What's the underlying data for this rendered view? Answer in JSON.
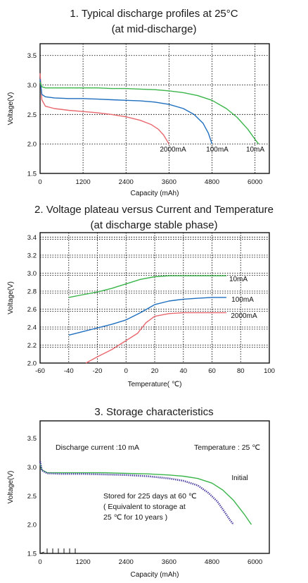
{
  "chart_data": [
    {
      "type": "line",
      "title": "1. Typical discharge profiles at 25°C",
      "subtitle": "(at mid-discharge)",
      "xlabel": "Capacity (mAh)",
      "ylabel": "Voltage(V)",
      "xlim": [
        0,
        6400
      ],
      "ylim": [
        1.5,
        3.7
      ],
      "xticks": [
        0,
        1200,
        2400,
        3600,
        4800,
        6000
      ],
      "xtick_labels": [
        "0",
        "1200",
        "2400",
        "3600",
        "4800",
        "6000"
      ],
      "yticks": [
        1.5,
        2.0,
        2.5,
        3.0,
        3.5
      ],
      "ytick_labels": [
        "1.5",
        "2.0",
        "2.5",
        "3.0",
        "3.5"
      ],
      "grid": true,
      "series": [
        {
          "name": "2000mA",
          "color": "#e9686f",
          "x": [
            0,
            50,
            150,
            400,
            800,
            1200,
            1600,
            2000,
            2400,
            2800,
            3100,
            3300,
            3450,
            3550,
            3600
          ],
          "y": [
            3.2,
            2.75,
            2.64,
            2.6,
            2.57,
            2.55,
            2.53,
            2.5,
            2.46,
            2.4,
            2.33,
            2.25,
            2.15,
            2.05,
            2.0
          ]
        },
        {
          "name": "100mA",
          "color": "#1f6fbf",
          "x": [
            0,
            50,
            150,
            400,
            800,
            1200,
            1600,
            2000,
            2400,
            2800,
            3200,
            3600,
            4000,
            4300,
            4550,
            4700,
            4800
          ],
          "y": [
            3.1,
            2.84,
            2.8,
            2.78,
            2.77,
            2.77,
            2.76,
            2.75,
            2.74,
            2.73,
            2.71,
            2.67,
            2.6,
            2.5,
            2.35,
            2.18,
            2.0
          ]
        },
        {
          "name": "10mA",
          "color": "#3ab54a",
          "x": [
            0,
            50,
            150,
            400,
            800,
            1200,
            1600,
            2000,
            2400,
            2800,
            3200,
            3600,
            4000,
            4400,
            4800,
            5200,
            5500,
            5800,
            6000,
            6100
          ],
          "y": [
            3.05,
            2.97,
            2.95,
            2.95,
            2.95,
            2.95,
            2.95,
            2.94,
            2.94,
            2.93,
            2.92,
            2.9,
            2.87,
            2.82,
            2.74,
            2.6,
            2.45,
            2.25,
            2.08,
            2.0
          ]
        }
      ]
    },
    {
      "type": "line",
      "title": "2. Voltage plateau versus Current and Temperature",
      "subtitle": "(at discharge stable phase)",
      "xlabel": "Temperature( ℃)",
      "ylabel": "Voltage(V)",
      "xlim": [
        -60,
        100
      ],
      "ylim": [
        2.0,
        3.45
      ],
      "xticks": [
        -60,
        -40,
        -20,
        0,
        20,
        40,
        60,
        80,
        100
      ],
      "xtick_labels": [
        "-60",
        "-40",
        "-20",
        "0",
        "20",
        "40",
        "60",
        "80",
        "100"
      ],
      "yticks": [
        2.0,
        2.2,
        2.4,
        2.6,
        2.8,
        3.0,
        3.2,
        3.4
      ],
      "ytick_labels": [
        "2.0",
        "2.2",
        "2.4",
        "2.6",
        "2.8",
        "3.0",
        "3.2",
        "3.4"
      ],
      "grid": true,
      "series": [
        {
          "name": "10mA",
          "color": "#3ab54a",
          "x": [
            -40,
            -30,
            -20,
            -10,
            0,
            10,
            20,
            30,
            40,
            50,
            60,
            70
          ],
          "y": [
            2.73,
            2.76,
            2.79,
            2.83,
            2.88,
            2.93,
            2.96,
            2.97,
            2.97,
            2.97,
            2.97,
            2.97
          ]
        },
        {
          "name": "100mA",
          "color": "#1f6fbf",
          "x": [
            -40,
            -30,
            -20,
            -10,
            0,
            10,
            20,
            30,
            40,
            50,
            60,
            70
          ],
          "y": [
            2.31,
            2.35,
            2.39,
            2.43,
            2.48,
            2.56,
            2.65,
            2.69,
            2.71,
            2.72,
            2.73,
            2.73
          ]
        },
        {
          "name": "2000mA",
          "color": "#e9686f",
          "x": [
            -28,
            -20,
            -10,
            0,
            8,
            14,
            20,
            30,
            40,
            50,
            60,
            70
          ],
          "y": [
            2.0,
            2.07,
            2.15,
            2.25,
            2.33,
            2.45,
            2.52,
            2.55,
            2.56,
            2.56,
            2.56,
            2.56
          ]
        }
      ]
    },
    {
      "type": "line",
      "title": "3. Storage characteristics",
      "xlabel": "Capacity (mAh)",
      "ylabel": "Voltage(V)",
      "xlim": [
        0,
        6400
      ],
      "ylim": [
        1.5,
        3.8
      ],
      "xticks": [
        0,
        1200,
        2400,
        3600,
        4800,
        6000
      ],
      "xtick_labels": [
        "0",
        "1200",
        "2400",
        "3600",
        "4800",
        "6000"
      ],
      "yticks": [
        1.5,
        2.0,
        2.5,
        3.0,
        3.5
      ],
      "ytick_labels": [
        "1.5",
        "2.0",
        "2.5",
        "3.0",
        "3.5"
      ],
      "grid": false,
      "annotations": [
        "Discharge current :10 mA",
        "Temperature : 25 ℃",
        "Stored for 225 days at 60 ℃",
        "( Equivalent to storage at",
        "25 ℃ for 10 years )"
      ],
      "series": [
        {
          "name": "Initial",
          "color": "#3ab54a",
          "x": [
            0,
            50,
            200,
            600,
            1200,
            1800,
            2400,
            3000,
            3600,
            4000,
            4400,
            4800,
            5100,
            5400,
            5700,
            5900
          ],
          "y": [
            3.05,
            2.95,
            2.9,
            2.9,
            2.9,
            2.9,
            2.89,
            2.88,
            2.86,
            2.84,
            2.8,
            2.72,
            2.6,
            2.42,
            2.18,
            2.0
          ]
        },
        {
          "name": "Stored for 225 days at 60 ℃",
          "color": "#4a3fa0",
          "x": [
            0,
            50,
            200,
            600,
            1200,
            1800,
            2400,
            3000,
            3600,
            4000,
            4400,
            4700,
            4950,
            5150,
            5300,
            5400
          ],
          "y": [
            3.1,
            2.94,
            2.89,
            2.88,
            2.88,
            2.87,
            2.86,
            2.84,
            2.8,
            2.76,
            2.68,
            2.55,
            2.4,
            2.22,
            2.08,
            2.0
          ]
        }
      ]
    }
  ]
}
